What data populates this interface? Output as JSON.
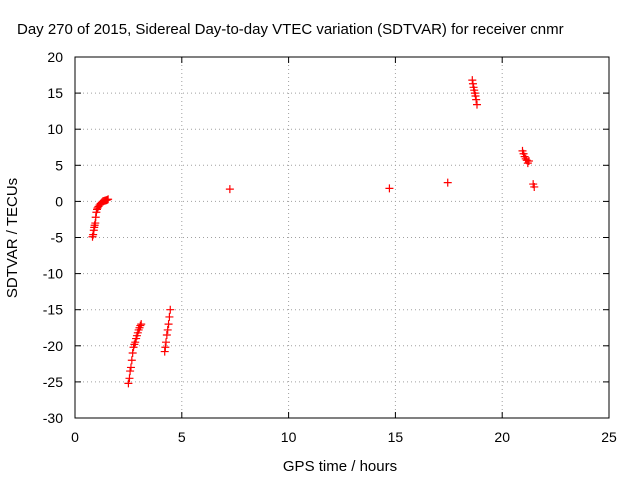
{
  "chart_data": {
    "type": "scatter",
    "title": "Day 270 of 2015, Sidereal Day-to-day VTEC variation (SDTVAR) for receiver cnmr",
    "xlabel": "GPS time / hours",
    "ylabel": "SDTVAR / TECUs",
    "xlim": [
      0,
      25
    ],
    "ylim": [
      -30,
      20
    ],
    "xticks": [
      0,
      5,
      10,
      15,
      20,
      25
    ],
    "yticks": [
      -30,
      -25,
      -20,
      -15,
      -10,
      -5,
      0,
      5,
      10,
      15,
      20
    ],
    "grid": true,
    "legend": "none",
    "marker": "+",
    "marker_color": "#ff0000",
    "series": [
      {
        "x": [
          0.82,
          0.85,
          0.88,
          0.9,
          0.92,
          0.95,
          0.97,
          1.0,
          1.03,
          1.06,
          1.1,
          1.15,
          1.2,
          1.25,
          1.3,
          1.35,
          1.4,
          1.45,
          1.5,
          1.55,
          2.5,
          2.55,
          2.58,
          2.62,
          2.66,
          2.7,
          2.74,
          2.78,
          2.82,
          2.86,
          2.9,
          2.94,
          2.98,
          3.02,
          3.06,
          3.1,
          4.2,
          4.23,
          4.26,
          4.3,
          4.34,
          4.38,
          4.42,
          4.46,
          7.25,
          14.72,
          17.45,
          18.6,
          18.63,
          18.66,
          18.69,
          18.72,
          18.75,
          18.78,
          18.82,
          20.95,
          21.0,
          21.05,
          21.1,
          21.15,
          21.2,
          21.25,
          21.45,
          21.5
        ],
        "y": [
          -4.9,
          -4.6,
          -4.0,
          -3.6,
          -3.3,
          -3.0,
          -2.2,
          -1.5,
          -1.1,
          -0.9,
          -0.7,
          -0.5,
          -0.3,
          -0.15,
          0.0,
          0.05,
          0.1,
          0.15,
          0.2,
          0.3,
          -25.2,
          -24.5,
          -23.5,
          -23.0,
          -22.0,
          -21.0,
          -20.2,
          -19.8,
          -19.5,
          -19.0,
          -18.6,
          -18.2,
          -17.8,
          -17.5,
          -17.2,
          -17.0,
          -20.8,
          -20.2,
          -19.5,
          -18.5,
          -17.8,
          -17.0,
          -16.0,
          -15.0,
          1.7,
          1.8,
          2.6,
          16.8,
          16.3,
          15.8,
          15.4,
          15.0,
          14.6,
          14.1,
          13.4,
          7.0,
          6.6,
          6.2,
          5.9,
          5.7,
          5.3,
          5.6,
          2.4,
          2.0
        ]
      }
    ]
  }
}
